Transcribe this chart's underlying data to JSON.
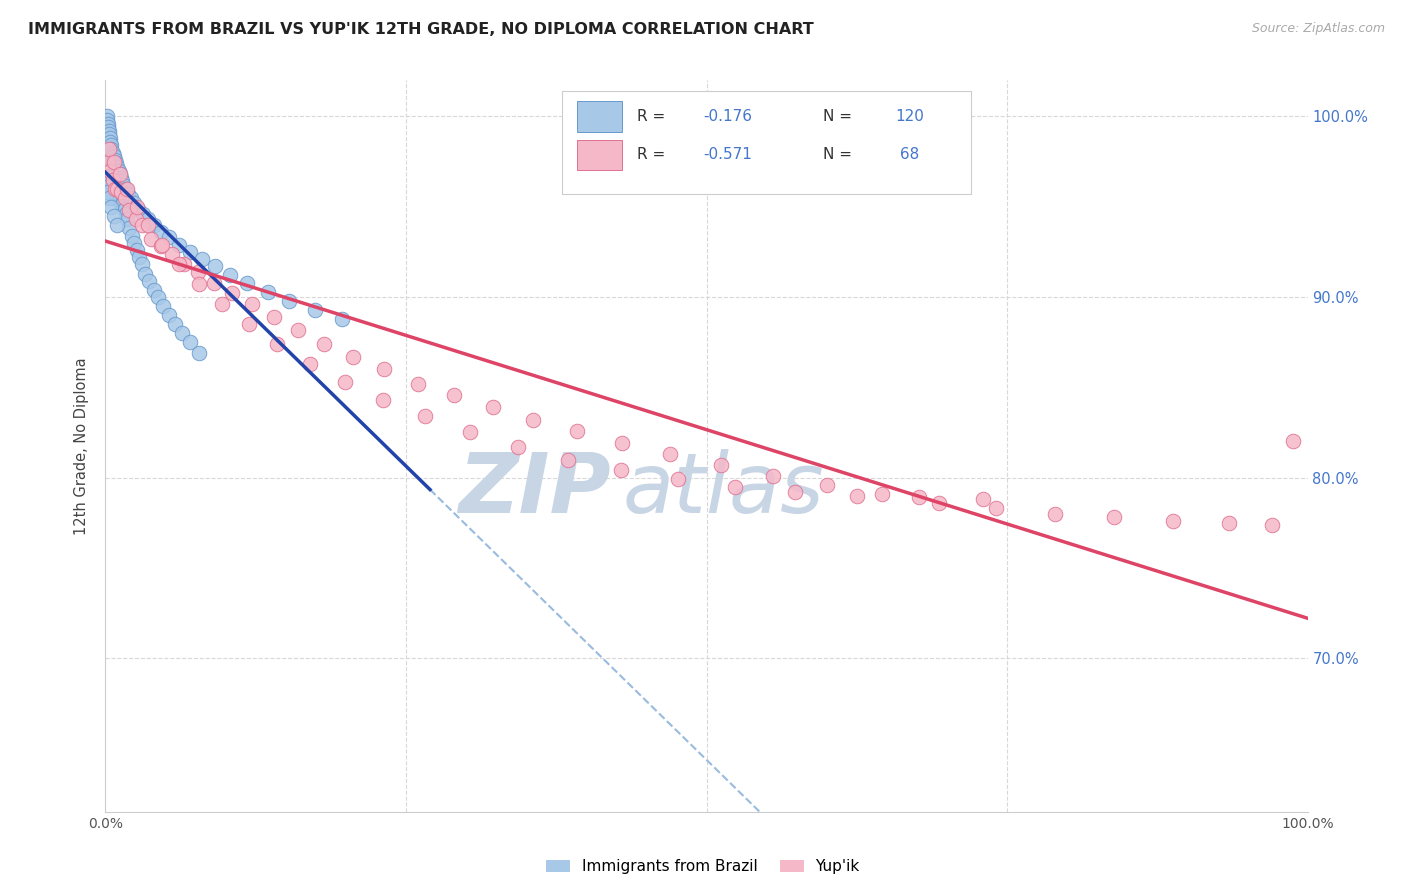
{
  "title": "IMMIGRANTS FROM BRAZIL VS YUP'IK 12TH GRADE, NO DIPLOMA CORRELATION CHART",
  "source": "Source: ZipAtlas.com",
  "ylabel": "12th Grade, No Diploma",
  "xlim": [
    0.0,
    1.0
  ],
  "ylim": [
    0.615,
    1.02
  ],
  "yticks": [
    0.7,
    0.8,
    0.9,
    1.0
  ],
  "ytick_labels": [
    "70.0%",
    "80.0%",
    "90.0%",
    "100.0%"
  ],
  "blue_color": "#a8c8e8",
  "blue_edge": "#6699cc",
  "pink_color": "#f5b8c8",
  "pink_edge": "#e07090",
  "blue_line_color": "#2244aa",
  "pink_line_color": "#dd4466",
  "dashed_line_color": "#99bbdd",
  "watermark_zip_color": "#c8d5e5",
  "watermark_atlas_color": "#c8d5e5",
  "background_color": "#ffffff",
  "grid_color": "#d8d8d8",
  "right_tick_color": "#4477cc",
  "blue_line_x_end": 0.27,
  "brazil_x": [
    0.001,
    0.001,
    0.001,
    0.001,
    0.001,
    0.002,
    0.002,
    0.002,
    0.002,
    0.002,
    0.002,
    0.003,
    0.003,
    0.003,
    0.003,
    0.003,
    0.003,
    0.004,
    0.004,
    0.004,
    0.004,
    0.004,
    0.004,
    0.005,
    0.005,
    0.005,
    0.005,
    0.005,
    0.006,
    0.006,
    0.006,
    0.006,
    0.006,
    0.007,
    0.007,
    0.007,
    0.007,
    0.008,
    0.008,
    0.008,
    0.008,
    0.009,
    0.009,
    0.009,
    0.01,
    0.01,
    0.01,
    0.011,
    0.011,
    0.012,
    0.012,
    0.013,
    0.013,
    0.014,
    0.015,
    0.016,
    0.017,
    0.018,
    0.02,
    0.022,
    0.024,
    0.026,
    0.028,
    0.03,
    0.033,
    0.036,
    0.04,
    0.044,
    0.048,
    0.053,
    0.058,
    0.064,
    0.07,
    0.078,
    0.001,
    0.001,
    0.002,
    0.002,
    0.003,
    0.003,
    0.004,
    0.004,
    0.005,
    0.005,
    0.006,
    0.007,
    0.008,
    0.009,
    0.01,
    0.011,
    0.012,
    0.013,
    0.014,
    0.015,
    0.017,
    0.019,
    0.021,
    0.024,
    0.027,
    0.031,
    0.035,
    0.04,
    0.046,
    0.053,
    0.061,
    0.07,
    0.08,
    0.091,
    0.104,
    0.118,
    0.135,
    0.153,
    0.174,
    0.197,
    0.001,
    0.002,
    0.003,
    0.005,
    0.007,
    0.01
  ],
  "brazil_y": [
    0.995,
    0.99,
    0.985,
    0.98,
    0.975,
    0.992,
    0.988,
    0.982,
    0.977,
    0.972,
    0.967,
    0.986,
    0.981,
    0.976,
    0.97,
    0.964,
    0.958,
    0.984,
    0.978,
    0.973,
    0.968,
    0.962,
    0.956,
    0.981,
    0.976,
    0.97,
    0.965,
    0.959,
    0.978,
    0.973,
    0.967,
    0.962,
    0.956,
    0.975,
    0.97,
    0.964,
    0.959,
    0.972,
    0.967,
    0.961,
    0.955,
    0.97,
    0.964,
    0.958,
    0.967,
    0.961,
    0.955,
    0.964,
    0.958,
    0.961,
    0.955,
    0.958,
    0.952,
    0.955,
    0.952,
    0.949,
    0.946,
    0.943,
    0.938,
    0.934,
    0.93,
    0.926,
    0.922,
    0.918,
    0.913,
    0.909,
    0.904,
    0.9,
    0.895,
    0.89,
    0.885,
    0.88,
    0.875,
    0.869,
    1.0,
    0.998,
    0.996,
    0.994,
    0.992,
    0.99,
    0.988,
    0.986,
    0.984,
    0.982,
    0.98,
    0.978,
    0.976,
    0.974,
    0.972,
    0.97,
    0.968,
    0.966,
    0.964,
    0.962,
    0.96,
    0.957,
    0.955,
    0.952,
    0.949,
    0.946,
    0.943,
    0.94,
    0.936,
    0.933,
    0.929,
    0.925,
    0.921,
    0.917,
    0.912,
    0.908,
    0.903,
    0.898,
    0.893,
    0.888,
    0.961,
    0.958,
    0.955,
    0.95,
    0.945,
    0.94
  ],
  "yupik_x": [
    0.002,
    0.004,
    0.006,
    0.008,
    0.01,
    0.013,
    0.016,
    0.02,
    0.025,
    0.03,
    0.038,
    0.046,
    0.055,
    0.065,
    0.077,
    0.09,
    0.105,
    0.122,
    0.14,
    0.16,
    0.182,
    0.206,
    0.232,
    0.26,
    0.29,
    0.322,
    0.356,
    0.392,
    0.43,
    0.47,
    0.512,
    0.555,
    0.6,
    0.646,
    0.693,
    0.741,
    0.79,
    0.839,
    0.888,
    0.935,
    0.97,
    0.988,
    0.003,
    0.007,
    0.012,
    0.018,
    0.026,
    0.035,
    0.047,
    0.061,
    0.078,
    0.097,
    0.119,
    0.143,
    0.17,
    0.199,
    0.231,
    0.266,
    0.303,
    0.343,
    0.385,
    0.429,
    0.476,
    0.524,
    0.574,
    0.625,
    0.677,
    0.73
  ],
  "yupik_y": [
    0.975,
    0.97,
    0.965,
    0.96,
    0.96,
    0.958,
    0.955,
    0.948,
    0.943,
    0.94,
    0.932,
    0.928,
    0.924,
    0.918,
    0.914,
    0.908,
    0.902,
    0.896,
    0.889,
    0.882,
    0.874,
    0.867,
    0.86,
    0.852,
    0.846,
    0.839,
    0.832,
    0.826,
    0.819,
    0.813,
    0.807,
    0.801,
    0.796,
    0.791,
    0.786,
    0.783,
    0.78,
    0.778,
    0.776,
    0.775,
    0.774,
    0.82,
    0.982,
    0.975,
    0.968,
    0.96,
    0.95,
    0.94,
    0.929,
    0.918,
    0.907,
    0.896,
    0.885,
    0.874,
    0.863,
    0.853,
    0.843,
    0.834,
    0.825,
    0.817,
    0.81,
    0.804,
    0.799,
    0.795,
    0.792,
    0.79,
    0.789,
    0.788
  ]
}
